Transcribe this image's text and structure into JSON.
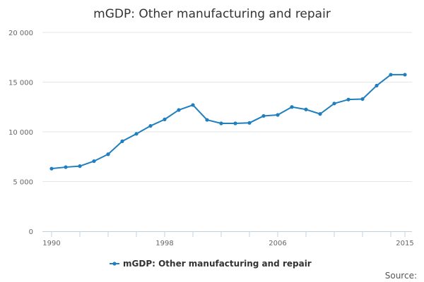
{
  "chart_data": {
    "type": "line",
    "title": "mGDP: Other manufacturing and repair",
    "xlabel": "",
    "ylabel": "",
    "x": [
      1990,
      1991,
      1992,
      1993,
      1994,
      1995,
      1996,
      1997,
      1998,
      1999,
      2000,
      2001,
      2002,
      2003,
      2004,
      2005,
      2006,
      2007,
      2008,
      2009,
      2010,
      2011,
      2012,
      2013,
      2014,
      2015
    ],
    "series": [
      {
        "name": "mGDP: Other manufacturing and repair",
        "color": "#1f7fbf",
        "values": [
          6300,
          6450,
          6550,
          7050,
          7750,
          9050,
          9800,
          10600,
          11250,
          12200,
          12700,
          11200,
          10850,
          10850,
          10900,
          11600,
          11700,
          12500,
          12250,
          11800,
          12850,
          13250,
          13300,
          14650,
          15750,
          15750
        ]
      }
    ],
    "ylim": [
      0,
      20000
    ],
    "yticks": [
      0,
      5000,
      10000,
      15000,
      20000
    ],
    "ytick_labels": [
      "0",
      "5 000",
      "10 000",
      "15 000",
      "20 000"
    ],
    "xticks": [
      1990,
      1998,
      2006,
      2015
    ],
    "xtick_labels": [
      "1990",
      "1998",
      "2006",
      "2015"
    ],
    "grid": true,
    "legend_position": "bottom-center",
    "credit": "Source:"
  }
}
